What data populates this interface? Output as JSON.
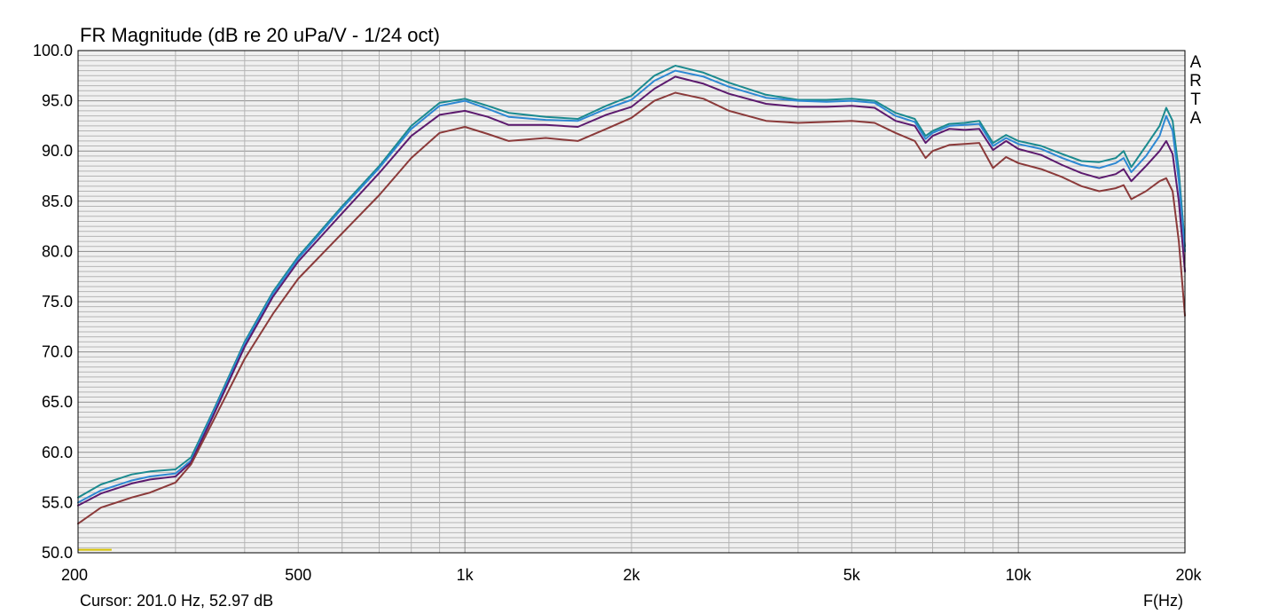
{
  "chart_data": {
    "type": "line",
    "title": "FR Magnitude (dB re 20 uPa/V - 1/24 oct)",
    "xlabel": "F(Hz)",
    "ylabel": "",
    "xscale": "log",
    "xlim": [
      200,
      20000
    ],
    "ylim": [
      50,
      100
    ],
    "grid": true,
    "x_tick_labels": [
      {
        "value": 200,
        "label": "200"
      },
      {
        "value": 500,
        "label": "500"
      },
      {
        "value": 1000,
        "label": "1k"
      },
      {
        "value": 2000,
        "label": "2k"
      },
      {
        "value": 5000,
        "label": "5k"
      },
      {
        "value": 10000,
        "label": "10k"
      },
      {
        "value": 20000,
        "label": "20k"
      }
    ],
    "y_tick_labels": [
      {
        "value": 100,
        "label": "100.0"
      },
      {
        "value": 95,
        "label": "95.0"
      },
      {
        "value": 90,
        "label": "90.0"
      },
      {
        "value": 85,
        "label": "85.0"
      },
      {
        "value": 80,
        "label": "80.0"
      },
      {
        "value": 75,
        "label": "75.0"
      },
      {
        "value": 70,
        "label": "70.0"
      },
      {
        "value": 65,
        "label": "65.0"
      },
      {
        "value": 60,
        "label": "60.0"
      },
      {
        "value": 55,
        "label": "55.0"
      },
      {
        "value": 50,
        "label": "50.0"
      }
    ],
    "series": [
      {
        "color": "#1b8a8f",
        "points": [
          [
            200,
            55.5
          ],
          [
            220,
            56.8
          ],
          [
            250,
            57.8
          ],
          [
            270,
            58.1
          ],
          [
            300,
            58.3
          ],
          [
            320,
            59.5
          ],
          [
            350,
            64
          ],
          [
            400,
            71
          ],
          [
            450,
            76
          ],
          [
            500,
            79.5
          ],
          [
            600,
            84.5
          ],
          [
            700,
            88.5
          ],
          [
            800,
            92.5
          ],
          [
            900,
            94.8
          ],
          [
            1000,
            95.2
          ],
          [
            1100,
            94.5
          ],
          [
            1200,
            93.8
          ],
          [
            1400,
            93.4
          ],
          [
            1600,
            93.2
          ],
          [
            1800,
            94.5
          ],
          [
            2000,
            95.5
          ],
          [
            2200,
            97.5
          ],
          [
            2400,
            98.5
          ],
          [
            2700,
            97.8
          ],
          [
            3000,
            96.8
          ],
          [
            3500,
            95.6
          ],
          [
            4000,
            95.1
          ],
          [
            4500,
            95.1
          ],
          [
            5000,
            95.2
          ],
          [
            5500,
            95
          ],
          [
            6000,
            93.8
          ],
          [
            6500,
            93.2
          ],
          [
            6800,
            91.5
          ],
          [
            7000,
            92
          ],
          [
            7500,
            92.7
          ],
          [
            8000,
            92.8
          ],
          [
            8500,
            93
          ],
          [
            9000,
            90.8
          ],
          [
            9500,
            91.6
          ],
          [
            10000,
            91
          ],
          [
            11000,
            90.5
          ],
          [
            12000,
            89.7
          ],
          [
            13000,
            89
          ],
          [
            14000,
            88.9
          ],
          [
            15000,
            89.3
          ],
          [
            15500,
            90
          ],
          [
            16000,
            88.4
          ],
          [
            17000,
            90.5
          ],
          [
            18000,
            92.5
          ],
          [
            18500,
            94.3
          ],
          [
            19000,
            93
          ],
          [
            19500,
            88
          ],
          [
            20000,
            80.5
          ]
        ]
      },
      {
        "color": "#2d88d3",
        "points": [
          [
            200,
            55
          ],
          [
            220,
            56.2
          ],
          [
            250,
            57.2
          ],
          [
            270,
            57.6
          ],
          [
            300,
            57.9
          ],
          [
            320,
            59.2
          ],
          [
            350,
            63.8
          ],
          [
            400,
            70.8
          ],
          [
            450,
            75.8
          ],
          [
            500,
            79.3
          ],
          [
            600,
            84.3
          ],
          [
            700,
            88.3
          ],
          [
            800,
            92.2
          ],
          [
            900,
            94.5
          ],
          [
            1000,
            95
          ],
          [
            1100,
            94.2
          ],
          [
            1200,
            93.4
          ],
          [
            1400,
            93.1
          ],
          [
            1600,
            93
          ],
          [
            1800,
            94.2
          ],
          [
            2000,
            95.1
          ],
          [
            2200,
            97
          ],
          [
            2400,
            98
          ],
          [
            2700,
            97.4
          ],
          [
            3000,
            96.4
          ],
          [
            3500,
            95.3
          ],
          [
            4000,
            95
          ],
          [
            4500,
            94.9
          ],
          [
            5000,
            95
          ],
          [
            5500,
            94.8
          ],
          [
            6000,
            93.5
          ],
          [
            6500,
            92.9
          ],
          [
            6800,
            91.2
          ],
          [
            7000,
            91.8
          ],
          [
            7500,
            92.5
          ],
          [
            8000,
            92.6
          ],
          [
            8500,
            92.7
          ],
          [
            9000,
            90.5
          ],
          [
            9500,
            91.3
          ],
          [
            10000,
            90.7
          ],
          [
            11000,
            90.2
          ],
          [
            12000,
            89.3
          ],
          [
            13000,
            88.6
          ],
          [
            14000,
            88.3
          ],
          [
            15000,
            88.8
          ],
          [
            15500,
            89.3
          ],
          [
            16000,
            87.9
          ],
          [
            17000,
            89.5
          ],
          [
            18000,
            91.5
          ],
          [
            18500,
            93.5
          ],
          [
            19000,
            92
          ],
          [
            19500,
            87
          ],
          [
            20000,
            80
          ]
        ]
      },
      {
        "color": "#5c1a6e",
        "points": [
          [
            200,
            54.7
          ],
          [
            220,
            55.9
          ],
          [
            250,
            56.9
          ],
          [
            270,
            57.3
          ],
          [
            300,
            57.6
          ],
          [
            320,
            59
          ],
          [
            350,
            63.5
          ],
          [
            400,
            70.5
          ],
          [
            450,
            75.5
          ],
          [
            500,
            79
          ],
          [
            600,
            83.8
          ],
          [
            700,
            87.8
          ],
          [
            800,
            91.5
          ],
          [
            900,
            93.6
          ],
          [
            1000,
            94
          ],
          [
            1100,
            93.4
          ],
          [
            1200,
            92.6
          ],
          [
            1400,
            92.6
          ],
          [
            1600,
            92.4
          ],
          [
            1800,
            93.6
          ],
          [
            2000,
            94.4
          ],
          [
            2200,
            96.2
          ],
          [
            2400,
            97.4
          ],
          [
            2700,
            96.7
          ],
          [
            3000,
            95.7
          ],
          [
            3500,
            94.7
          ],
          [
            4000,
            94.4
          ],
          [
            4500,
            94.4
          ],
          [
            5000,
            94.5
          ],
          [
            5500,
            94.3
          ],
          [
            6000,
            93
          ],
          [
            6500,
            92.5
          ],
          [
            6800,
            90.8
          ],
          [
            7000,
            91.5
          ],
          [
            7500,
            92.2
          ],
          [
            8000,
            92.1
          ],
          [
            8500,
            92.2
          ],
          [
            9000,
            90.1
          ],
          [
            9500,
            91
          ],
          [
            10000,
            90.2
          ],
          [
            11000,
            89.6
          ],
          [
            12000,
            88.6
          ],
          [
            13000,
            87.8
          ],
          [
            14000,
            87.3
          ],
          [
            15000,
            87.7
          ],
          [
            15500,
            88.2
          ],
          [
            16000,
            87
          ],
          [
            17000,
            88.5
          ],
          [
            18000,
            90
          ],
          [
            18500,
            91
          ],
          [
            19000,
            89.7
          ],
          [
            19500,
            85
          ],
          [
            20000,
            78
          ]
        ]
      },
      {
        "color": "#8b3a3a",
        "points": [
          [
            200,
            52.9
          ],
          [
            220,
            54.5
          ],
          [
            250,
            55.5
          ],
          [
            270,
            56
          ],
          [
            300,
            57
          ],
          [
            320,
            58.8
          ],
          [
            350,
            63
          ],
          [
            400,
            69.3
          ],
          [
            450,
            73.8
          ],
          [
            500,
            77.3
          ],
          [
            600,
            81.8
          ],
          [
            700,
            85.6
          ],
          [
            800,
            89.3
          ],
          [
            900,
            91.8
          ],
          [
            1000,
            92.4
          ],
          [
            1100,
            91.7
          ],
          [
            1200,
            91
          ],
          [
            1400,
            91.3
          ],
          [
            1600,
            91
          ],
          [
            1800,
            92.2
          ],
          [
            2000,
            93.3
          ],
          [
            2200,
            95
          ],
          [
            2400,
            95.8
          ],
          [
            2700,
            95.2
          ],
          [
            3000,
            94
          ],
          [
            3500,
            93
          ],
          [
            4000,
            92.8
          ],
          [
            4500,
            92.9
          ],
          [
            5000,
            93
          ],
          [
            5500,
            92.8
          ],
          [
            6000,
            91.8
          ],
          [
            6500,
            91
          ],
          [
            6800,
            89.3
          ],
          [
            7000,
            90
          ],
          [
            7500,
            90.6
          ],
          [
            8000,
            90.7
          ],
          [
            8500,
            90.8
          ],
          [
            9000,
            88.3
          ],
          [
            9500,
            89.4
          ],
          [
            10000,
            88.8
          ],
          [
            11000,
            88.2
          ],
          [
            12000,
            87.4
          ],
          [
            13000,
            86.5
          ],
          [
            14000,
            86
          ],
          [
            15000,
            86.3
          ],
          [
            15500,
            86.6
          ],
          [
            16000,
            85.2
          ],
          [
            17000,
            86
          ],
          [
            18000,
            87
          ],
          [
            18500,
            87.3
          ],
          [
            19000,
            86
          ],
          [
            19500,
            81
          ],
          [
            20000,
            73.6
          ]
        ]
      }
    ],
    "marker": {
      "color": "#d4c000",
      "x": [
        200,
        230
      ],
      "y": 50.3
    }
  },
  "brand_letters": [
    "A",
    "R",
    "T",
    "A"
  ],
  "cursor_readout": "Cursor: 201.0 Hz, 52.97 dB",
  "colors": {
    "plot_bg": "#f0f0f0",
    "grid_major": "#8c8c8c",
    "grid_minor": "#b4b4b4"
  }
}
